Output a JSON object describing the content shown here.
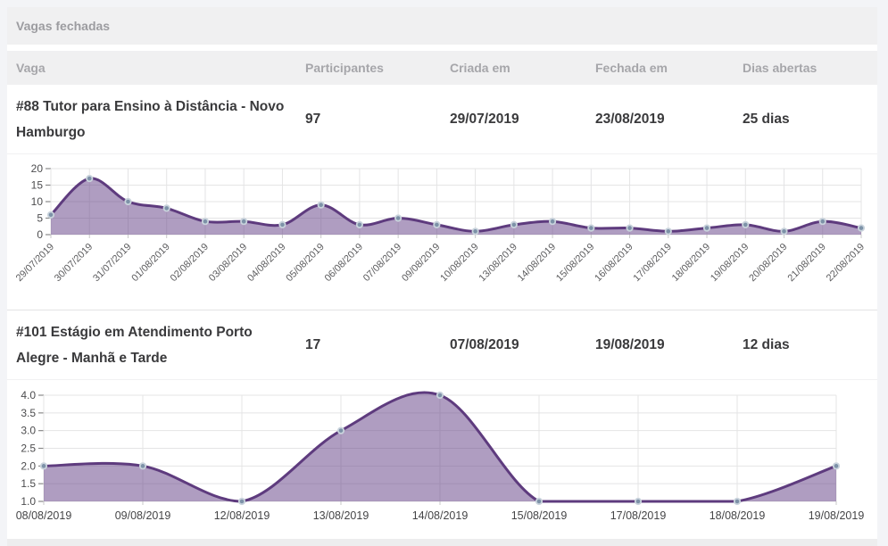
{
  "section": {
    "title": "Vagas fechadas"
  },
  "table": {
    "columns": [
      "Vaga",
      "Participantes",
      "Criada em",
      "Fechada em",
      "Dias abertas"
    ],
    "rows": [
      {
        "vaga": "#88 Tutor para Ensino à Distância - Novo Hamburgo",
        "participantes": "97",
        "criada_em": "29/07/2019",
        "fechada_em": "23/08/2019",
        "dias_abertas": "25 dias"
      },
      {
        "vaga": "#101 Estágio em Atendimento Porto Alegre - Manhã e Tarde",
        "participantes": "17",
        "criada_em": "07/08/2019",
        "fechada_em": "19/08/2019",
        "dias_abertas": "12 dias"
      }
    ]
  },
  "colors": {
    "line": "#5e3b7e",
    "fill": "rgba(95,60,131,0.5)",
    "dot": "#7d92a8",
    "dot_border": "#c9d3dc",
    "grid": "#e4e4e5",
    "ytick_dash": "#8a8a8a",
    "xtick_dash": "#c9c9c9",
    "section_bg": "#f0f0f1"
  },
  "chart_data": [
    {
      "type": "area",
      "title": "",
      "x": [
        "29/07/2019",
        "30/07/2019",
        "31/07/2019",
        "01/08/2019",
        "02/08/2019",
        "03/08/2019",
        "04/08/2019",
        "05/08/2019",
        "06/08/2019",
        "07/08/2019",
        "09/08/2019",
        "10/08/2019",
        "13/08/2019",
        "14/08/2019",
        "15/08/2019",
        "16/08/2019",
        "17/08/2019",
        "18/08/2019",
        "19/08/2019",
        "20/08/2019",
        "21/08/2019",
        "22/08/2019"
      ],
      "values": [
        6,
        17,
        10,
        8,
        4,
        4,
        3,
        9,
        3,
        5,
        3,
        1,
        3,
        4,
        2,
        2,
        1,
        2,
        3,
        1,
        4,
        2
      ],
      "xlabel": "",
      "ylabel": "",
      "ylim": [
        0,
        20
      ],
      "yticks": [
        0,
        5,
        10,
        15,
        20
      ],
      "grid": true,
      "legend": "none",
      "x_label_rotation": -45
    },
    {
      "type": "area",
      "title": "",
      "x": [
        "08/08/2019",
        "09/08/2019",
        "12/08/2019",
        "13/08/2019",
        "14/08/2019",
        "15/08/2019",
        "17/08/2019",
        "18/08/2019",
        "19/08/2019"
      ],
      "values": [
        2,
        2,
        1,
        3,
        4,
        1,
        1,
        1,
        2
      ],
      "xlabel": "",
      "ylabel": "",
      "ylim": [
        1,
        4
      ],
      "yticks": [
        1,
        1.5,
        2,
        2.5,
        3,
        3.5,
        4
      ],
      "grid": true,
      "legend": "none",
      "x_label_rotation": 0
    }
  ]
}
